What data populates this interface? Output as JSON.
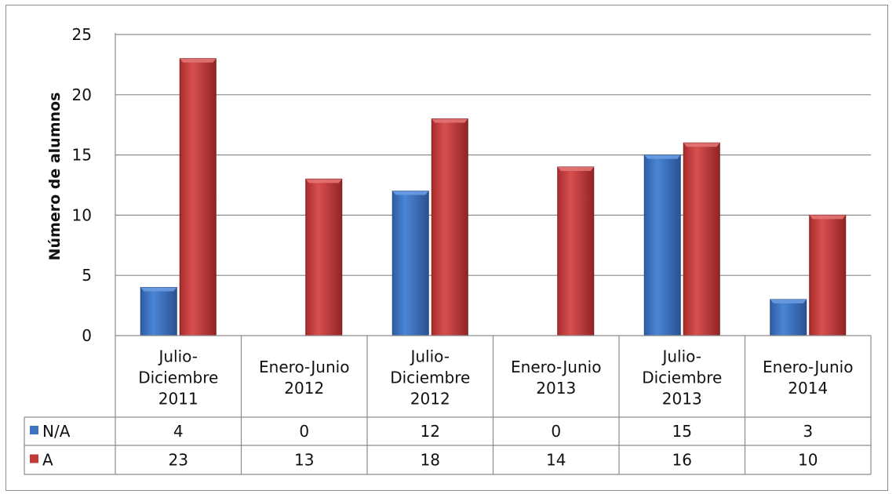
{
  "chart_data": {
    "type": "bar",
    "title": "",
    "xlabel": "",
    "ylabel": "Número de alumnos",
    "ylim": [
      0,
      25
    ],
    "yticks": [
      0,
      5,
      10,
      15,
      20,
      25
    ],
    "grid": true,
    "legend": "data-table",
    "categories": [
      [
        "Julio-",
        "Diciembre",
        "2011"
      ],
      [
        "Enero-Junio",
        "2012"
      ],
      [
        "Julio-",
        "Diciembre",
        "2012"
      ],
      [
        "Enero-Junio",
        "2013"
      ],
      [
        "Julio-",
        "Diciembre",
        "2013"
      ],
      [
        "Enero-Junio",
        "2014"
      ]
    ],
    "series": [
      {
        "name": "N/A",
        "color": "#3e74c2",
        "values": [
          4,
          0,
          12,
          0,
          15,
          3
        ]
      },
      {
        "name": "A",
        "color": "#c03a3a",
        "values": [
          23,
          13,
          18,
          14,
          16,
          10
        ]
      }
    ]
  }
}
